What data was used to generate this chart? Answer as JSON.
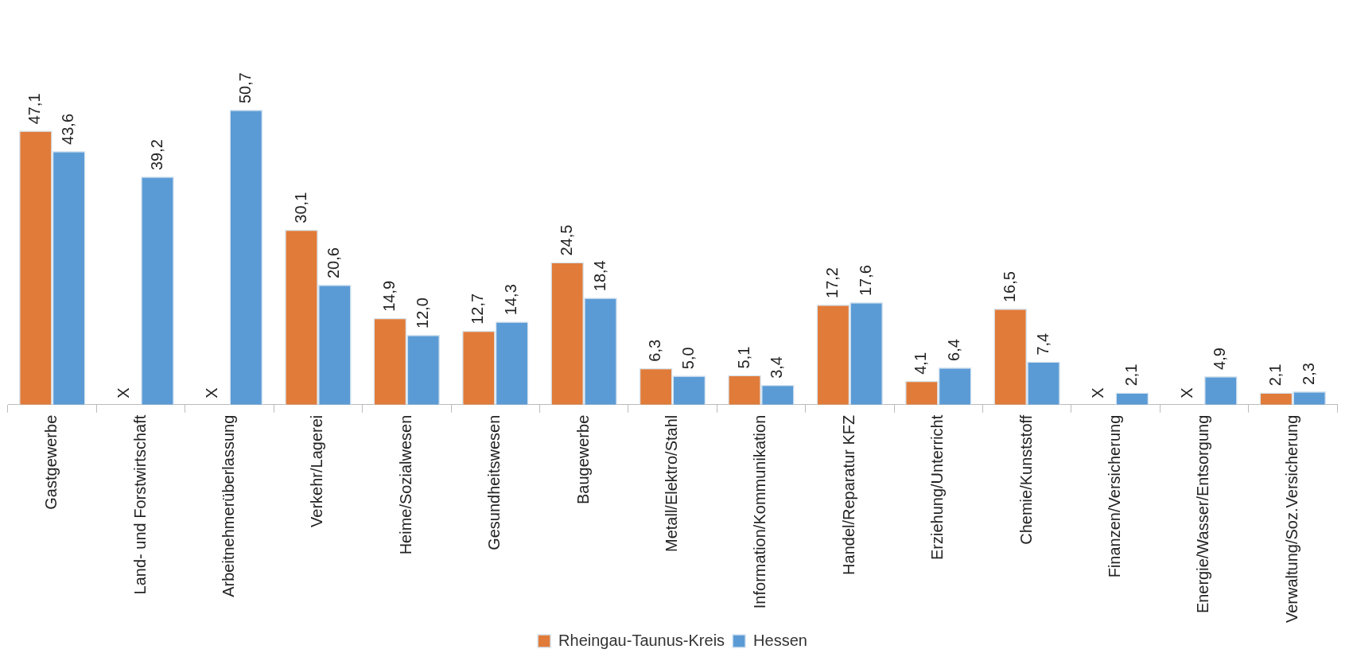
{
  "chart_data": {
    "type": "bar",
    "categories": [
      "Gastgewerbe",
      "Land- und Forstwirtschaft",
      "Arbeitnehmerüberlassung",
      "Verkehr/Lagerei",
      "Heime/Sozialwesen",
      "Gesundheitswesen",
      "Baugewerbe",
      "Metall/Elektro/Stahl",
      "Information/Kommunikation",
      "Handel/Reparatur KFZ",
      "Erziehung/Unterricht",
      "Chemie/Kunststoff",
      "Finanzen/Versicherung",
      "Energie/Wasser/Entsorgung",
      "Verwaltung/Soz.Versicherung"
    ],
    "series": [
      {
        "name": "Rheingau-Taunus-Kreis",
        "color": "#e07b39",
        "values": [
          47.1,
          null,
          null,
          30.1,
          14.9,
          12.7,
          24.5,
          6.3,
          5.1,
          17.2,
          4.1,
          16.5,
          null,
          null,
          2.1
        ],
        "value_labels": [
          "47,1",
          "X",
          "X",
          "30,1",
          "14,9",
          "12,7",
          "24,5",
          "6,3",
          "5,1",
          "17,2",
          "4,1",
          "16,5",
          "X",
          "X",
          "2,1"
        ]
      },
      {
        "name": "Hessen",
        "color": "#5b9bd5",
        "values": [
          43.6,
          39.2,
          50.7,
          20.6,
          12.0,
          14.3,
          18.4,
          5.0,
          3.4,
          17.6,
          6.4,
          7.4,
          2.1,
          4.9,
          2.3
        ],
        "value_labels": [
          "43,6",
          "39,2",
          "50,7",
          "20,6",
          "12,0",
          "14,3",
          "18,4",
          "5,0",
          "3,4",
          "17,6",
          "6,4",
          "7,4",
          "2,1",
          "4,9",
          "2,3"
        ]
      }
    ],
    "grid": false,
    "legend": "bottom"
  }
}
